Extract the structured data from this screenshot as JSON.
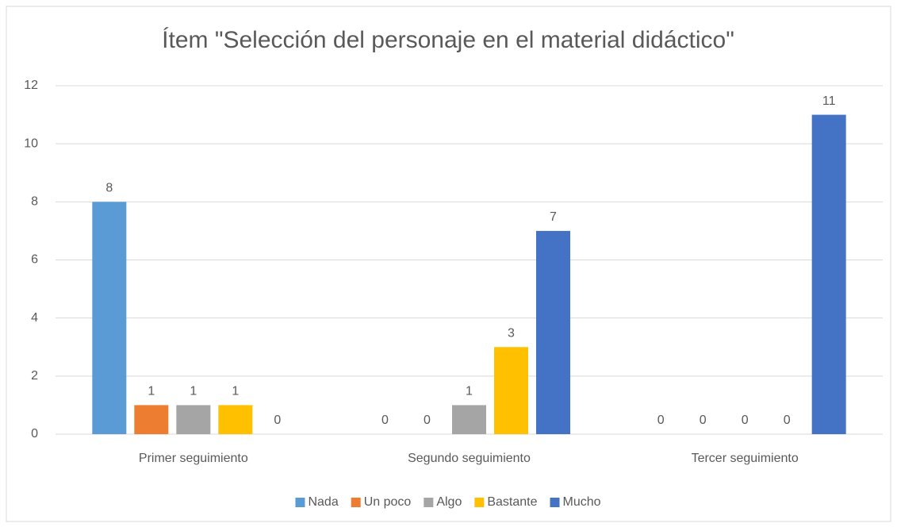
{
  "chart_data": {
    "type": "bar",
    "title": "Ítem \"Selección del personaje en el material didáctico\"",
    "categories": [
      "Primer seguimiento",
      "Segundo seguimiento",
      "Tercer seguimiento"
    ],
    "series": [
      {
        "name": "Nada",
        "color": "#5b9bd5",
        "values": [
          8,
          0,
          0
        ]
      },
      {
        "name": "Un poco",
        "color": "#ed7d31",
        "values": [
          1,
          0,
          0
        ]
      },
      {
        "name": "Algo",
        "color": "#a5a5a5",
        "values": [
          1,
          1,
          0
        ]
      },
      {
        "name": "Bastante",
        "color": "#ffc000",
        "values": [
          1,
          3,
          0
        ]
      },
      {
        "name": "Mucho",
        "color": "#4472c4",
        "values": [
          0,
          7,
          11
        ]
      }
    ],
    "ylim": [
      0,
      12
    ],
    "yticks": [
      0,
      2,
      4,
      6,
      8,
      10,
      12
    ],
    "grid": true,
    "legend": "bottom"
  }
}
